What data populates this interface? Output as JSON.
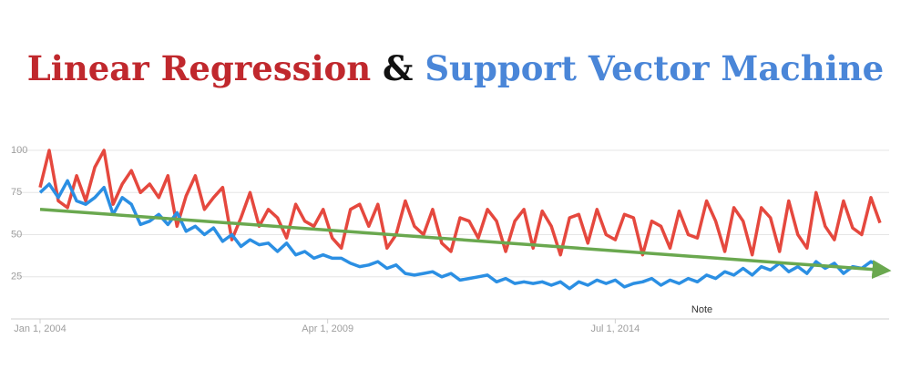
{
  "chart_data": {
    "type": "line",
    "title_connector": "&",
    "x": [
      "2004-01",
      "2004-03",
      "2004-05",
      "2004-07",
      "2004-09",
      "2004-11",
      "2005-01",
      "2005-03",
      "2005-05",
      "2005-07",
      "2005-09",
      "2005-11",
      "2006-01",
      "2006-03",
      "2006-05",
      "2006-07",
      "2006-09",
      "2006-11",
      "2007-01",
      "2007-03",
      "2007-05",
      "2007-07",
      "2007-09",
      "2007-11",
      "2008-01",
      "2008-03",
      "2008-05",
      "2008-07",
      "2008-09",
      "2008-11",
      "2009-01",
      "2009-03",
      "2009-05",
      "2009-07",
      "2009-09",
      "2009-11",
      "2010-01",
      "2010-03",
      "2010-05",
      "2010-07",
      "2010-09",
      "2010-11",
      "2011-01",
      "2011-03",
      "2011-05",
      "2011-07",
      "2011-09",
      "2011-11",
      "2012-01",
      "2012-03",
      "2012-05",
      "2012-07",
      "2012-09",
      "2012-11",
      "2013-01",
      "2013-03",
      "2013-05",
      "2013-07",
      "2013-09",
      "2013-11",
      "2014-01",
      "2014-03",
      "2014-05",
      "2014-07",
      "2014-09",
      "2014-11",
      "2015-01",
      "2015-03",
      "2015-05",
      "2015-07",
      "2015-09",
      "2015-11",
      "2016-01",
      "2016-03",
      "2016-05",
      "2016-07",
      "2016-09",
      "2016-11",
      "2017-01",
      "2017-03",
      "2017-05",
      "2017-07",
      "2017-09",
      "2017-11",
      "2018-01",
      "2018-03",
      "2018-05",
      "2018-07",
      "2018-09",
      "2018-11",
      "2019-01",
      "2019-03",
      "2019-05"
    ],
    "series": [
      {
        "name": "Linear Regression",
        "color": "#e5483e",
        "title_color": "#c0282d",
        "values": [
          78,
          100,
          70,
          66,
          85,
          70,
          90,
          100,
          68,
          80,
          88,
          75,
          80,
          72,
          85,
          55,
          73,
          85,
          65,
          72,
          78,
          47,
          60,
          75,
          55,
          65,
          60,
          48,
          68,
          58,
          55,
          65,
          48,
          42,
          65,
          68,
          55,
          68,
          42,
          50,
          70,
          55,
          50,
          65,
          45,
          40,
          60,
          58,
          48,
          65,
          58,
          40,
          58,
          65,
          42,
          64,
          55,
          38,
          60,
          62,
          45,
          65,
          50,
          47,
          62,
          60,
          38,
          58,
          55,
          42,
          64,
          50,
          48,
          70,
          58,
          40,
          66,
          58,
          38,
          66,
          60,
          40,
          70,
          50,
          42,
          75,
          55,
          47,
          70,
          54,
          50,
          72,
          57
        ]
      },
      {
        "name": "Support Vector Machine",
        "color": "#2b8fe3",
        "title_color": "#4a86d8",
        "values": [
          75,
          80,
          72,
          82,
          70,
          68,
          72,
          78,
          62,
          72,
          68,
          56,
          58,
          62,
          56,
          63,
          52,
          55,
          50,
          54,
          46,
          50,
          43,
          47,
          44,
          45,
          40,
          45,
          38,
          40,
          36,
          38,
          36,
          36,
          33,
          31,
          32,
          34,
          30,
          32,
          27,
          26,
          27,
          28,
          25,
          27,
          23,
          24,
          25,
          26,
          22,
          24,
          21,
          22,
          21,
          22,
          20,
          22,
          18,
          22,
          20,
          23,
          21,
          23,
          19,
          21,
          22,
          24,
          20,
          23,
          21,
          24,
          22,
          26,
          24,
          28,
          26,
          30,
          26,
          31,
          29,
          33,
          28,
          31,
          27,
          34,
          30,
          33,
          27,
          31,
          30,
          34,
          31
        ]
      }
    ],
    "trendline": {
      "color": "#6aa84f",
      "values": [
        65,
        29
      ]
    },
    "annotation": {
      "text": "Note",
      "x": "2016-02"
    },
    "xlim": [
      "2004-01",
      "2019-07"
    ],
    "xticks": [
      {
        "value": "2004-01",
        "label": "Jan 1, 2004"
      },
      {
        "value": "2009-04",
        "label": "Apr 1, 2009"
      },
      {
        "value": "2014-07",
        "label": "Jul 1, 2014"
      }
    ],
    "ylim": [
      0,
      100
    ],
    "yticks": [
      25,
      50,
      75,
      100
    ],
    "grid": true
  }
}
